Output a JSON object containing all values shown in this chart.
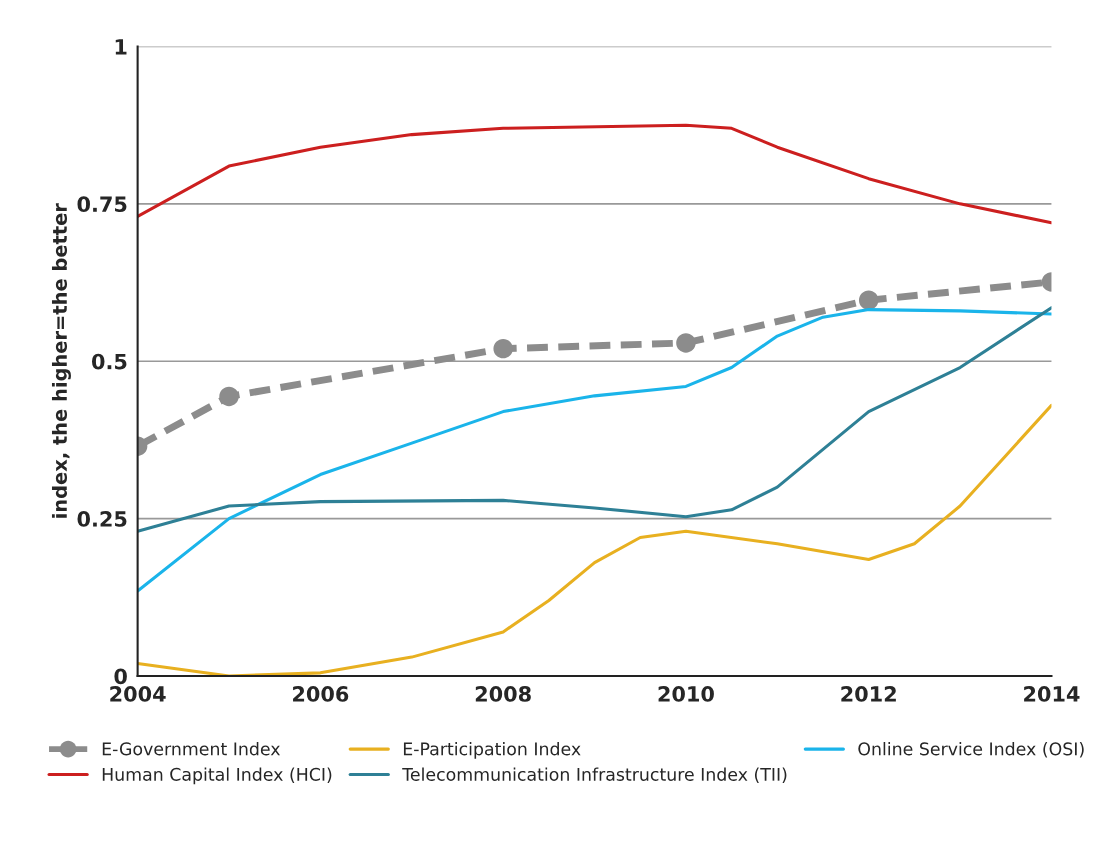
{
  "chart_data": {
    "type": "line",
    "ylabel": "index, the higher=the better",
    "xlim": [
      2004,
      2014
    ],
    "xticks": [
      2004,
      2006,
      2008,
      2010,
      2012,
      2014
    ],
    "ylim": [
      0,
      1
    ],
    "yticks": [
      0,
      0.25,
      0.5,
      0.75,
      1
    ],
    "grid": "y",
    "legend": "bottom",
    "marker": "none",
    "line_style": "solid",
    "series": [
      {
        "name": "E-Government Index",
        "color": "#8c8c8c",
        "marker": "circle",
        "line_style": "dashed",
        "x": [
          2004,
          2005,
          2008,
          2010,
          2012,
          2014
        ],
        "values": [
          0.365,
          0.444,
          0.52,
          0.529,
          0.597,
          0.626
        ]
      },
      {
        "name": "E-Participation Index",
        "color": "#e8b020",
        "x": [
          2004,
          2005,
          2006,
          2007,
          2008,
          2008.5,
          2009,
          2009.5,
          2010,
          2011,
          2012,
          2012.5,
          2013,
          2013.5,
          2014
        ],
        "values": [
          0.02,
          0.0,
          0.005,
          0.03,
          0.07,
          0.12,
          0.18,
          0.22,
          0.23,
          0.21,
          0.185,
          0.21,
          0.27,
          0.35,
          0.43
        ]
      },
      {
        "name": "Online Service Index (OSI)",
        "color": "#1ab4ea",
        "x": [
          2004,
          2005,
          2006,
          2007,
          2008,
          2009,
          2010,
          2010.5,
          2011,
          2011.5,
          2012,
          2013,
          2014
        ],
        "values": [
          0.135,
          0.25,
          0.32,
          0.37,
          0.42,
          0.445,
          0.46,
          0.49,
          0.54,
          0.57,
          0.582,
          0.58,
          0.575
        ]
      },
      {
        "name": "Human Capital Index (HCI)",
        "color": "#cc1f1f",
        "x": [
          2004,
          2005,
          2006,
          2007,
          2008,
          2010,
          2010.5,
          2011,
          2012,
          2013,
          2014
        ],
        "values": [
          0.73,
          0.81,
          0.84,
          0.86,
          0.87,
          0.875,
          0.87,
          0.84,
          0.79,
          0.75,
          0.72
        ]
      },
      {
        "name": "Telecommunication Infrastructure Index (TII)",
        "color": "#2e8096",
        "x": [
          2004,
          2005,
          2006,
          2008,
          2009,
          2010,
          2010.5,
          2011,
          2012,
          2013,
          2014
        ],
        "values": [
          0.23,
          0.27,
          0.277,
          0.279,
          0.267,
          0.253,
          0.264,
          0.3,
          0.42,
          0.49,
          0.585
        ]
      }
    ]
  }
}
